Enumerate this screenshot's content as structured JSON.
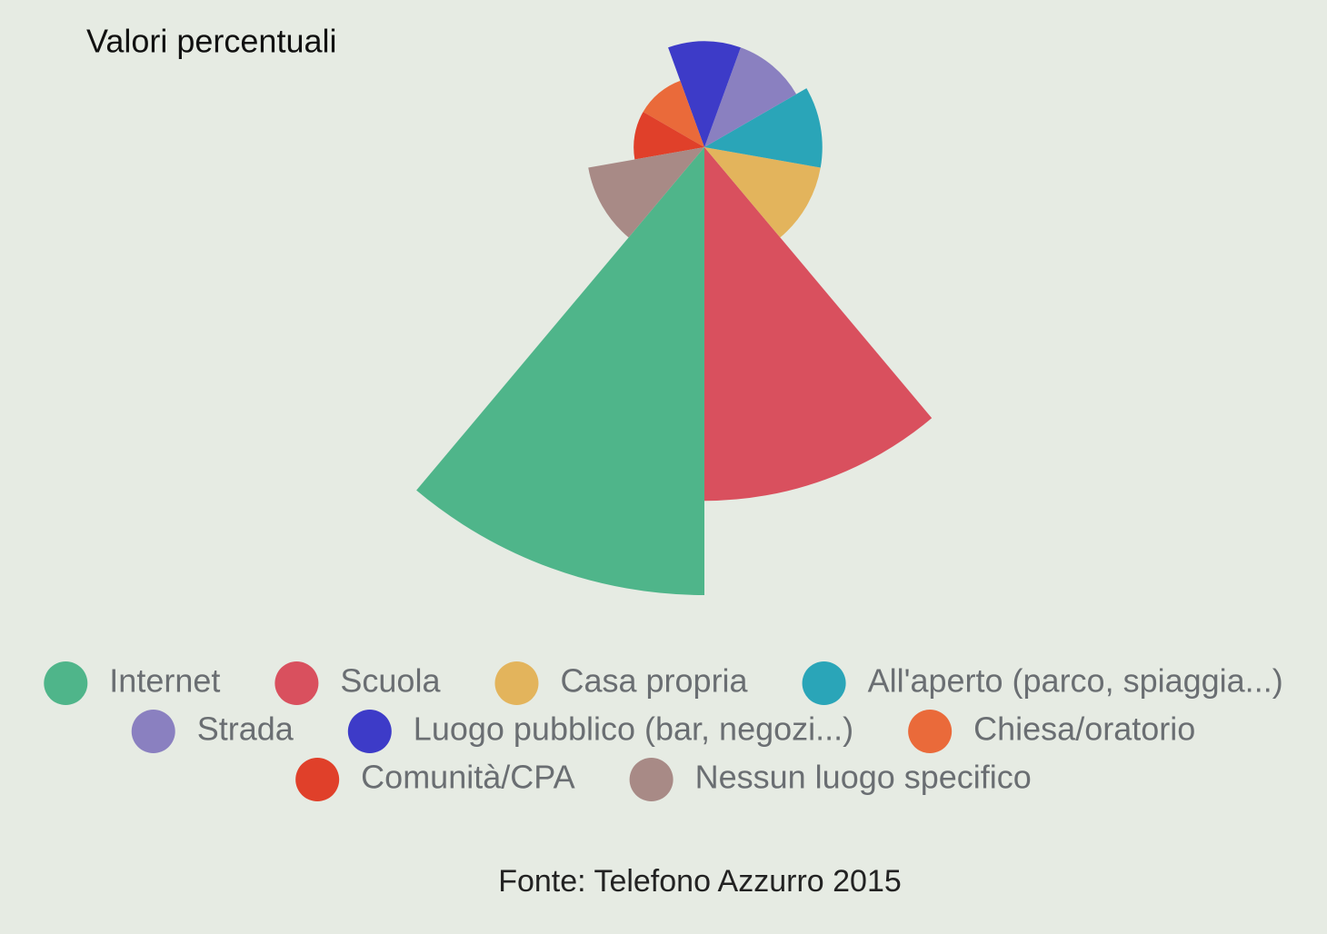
{
  "chart_data": {
    "type": "polar-area",
    "subtitle": "Valori percentuali",
    "categories": [
      "Internet",
      "Scuola",
      "Casa propria",
      "All'aperto (parco, spiaggia...)",
      "Strada",
      "Luogo pubblico (bar, negozi...)",
      "Chiesa/oratorio",
      "Comunità/CPA",
      "Nessun luogo specifico"
    ],
    "values": [
      38,
      30,
      10,
      10,
      9,
      9,
      6,
      6,
      10
    ],
    "colors": [
      "#4fb58a",
      "#d9505e",
      "#e3b45c",
      "#2aa5b8",
      "#8a80c0",
      "#3d3bc8",
      "#ea6a3a",
      "#e0402a",
      "#a88a86"
    ],
    "source": "Fonte: Telefono Azzurro 2015"
  }
}
